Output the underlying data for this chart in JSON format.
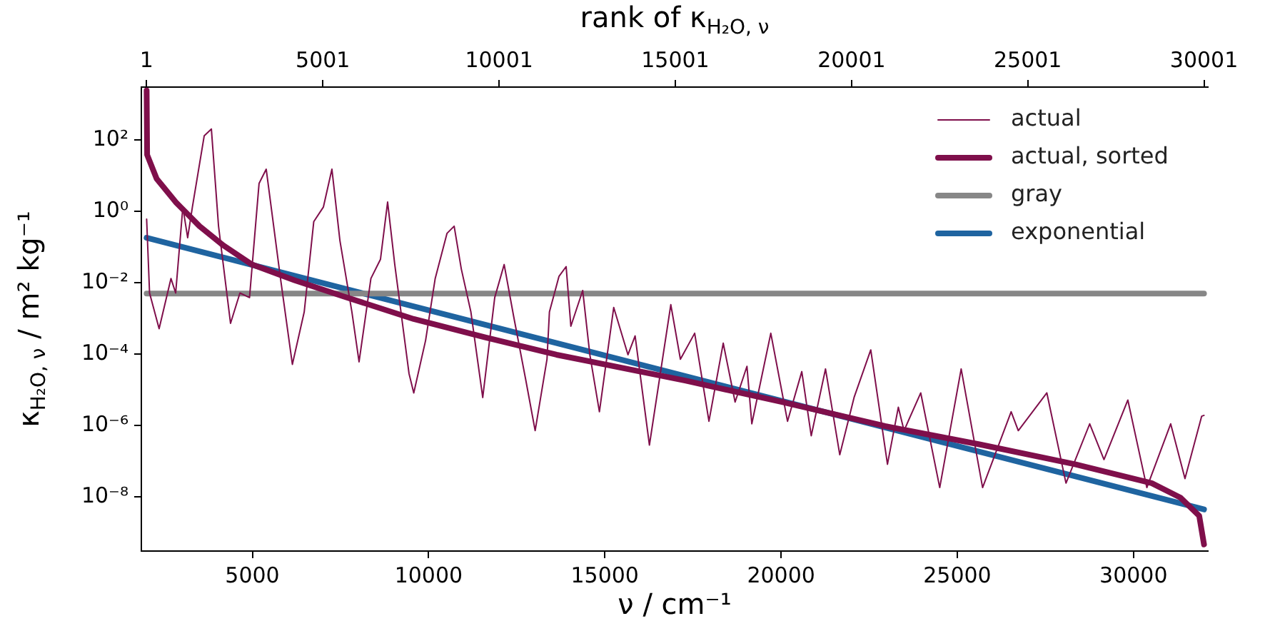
{
  "chart_data": {
    "type": "line",
    "xlabel": "ν / cm⁻¹",
    "ylabel": "κ$_{H₂O, ν}$ / m² kg⁻¹",
    "x2label": "rank of κ$_{H₂O, ν}$",
    "log": "y",
    "xlim": [
      1850,
      32110
    ],
    "xticks": [
      5000,
      10000,
      15000,
      20000,
      25000,
      30000
    ],
    "x2lim": [
      -149,
      30111
    ],
    "x2ticks": [
      1,
      5001,
      10001,
      15001,
      20001,
      25001,
      30001
    ],
    "ylim": [
      3e-10,
      3000
    ],
    "yticks": [
      {
        "value": 1e-08,
        "label": "10⁻⁸"
      },
      {
        "value": 1e-06,
        "label": "10⁻⁶"
      },
      {
        "value": 0.0001,
        "label": "10⁻⁴"
      },
      {
        "value": 0.01,
        "label": "10⁻²"
      },
      {
        "value": 1,
        "label": "10⁰"
      },
      {
        "value": 100,
        "label": "10²"
      }
    ],
    "grid": false,
    "legend": "top right",
    "marker": "none",
    "line_style": "solid",
    "series": [
      {
        "name": "actual",
        "color": "#7f0f4b",
        "x": [
          2000,
          2083,
          2354,
          2690,
          2824,
          3027,
          3164,
          3298,
          3634,
          3837,
          4040,
          4380,
          4647,
          4919,
          5190,
          5393,
          5798,
          6135,
          6471,
          6742,
          7014,
          7257,
          7484,
          7824,
          8027,
          8363,
          8635,
          8837,
          9040,
          9445,
          9579,
          9915,
          10187,
          10523,
          10725,
          10928,
          11200,
          11536,
          11876,
          12144,
          12415,
          12751,
          13023,
          13359,
          13428,
          13700,
          13902,
          14036,
          14372,
          14575,
          14846,
          15252,
          15657,
          15859,
          16265,
          16872,
          17144,
          17549,
          17954,
          18359,
          18696,
          19032,
          19170,
          19709,
          20183,
          20588,
          20856,
          21261,
          21666,
          22071,
          22545,
          23019,
          23327,
          23489,
          23963,
          24502,
          25110,
          25718,
          26528,
          26731,
          27541,
          28084,
          28757,
          29162,
          29839,
          30378,
          31054,
          31460,
          31934,
          32000
        ],
        "values": [
          0.6,
          0.0051,
          0.00051,
          0.013,
          0.0051,
          1.3,
          0.18,
          1.3,
          130,
          200,
          0.38,
          0.00072,
          0.0051,
          0.0038,
          6,
          15,
          0.013,
          5.1e-05,
          0.0015,
          0.51,
          1.3,
          15,
          0.15,
          0.0015,
          6e-05,
          0.013,
          0.045,
          1.8,
          0.032,
          2.8e-05,
          8.1e-06,
          0.00024,
          0.013,
          0.24,
          0.38,
          0.024,
          0.0015,
          6e-06,
          0.0038,
          0.032,
          0.0011,
          2e-05,
          7.1e-07,
          7.1e-05,
          0.0015,
          0.015,
          0.028,
          0.0006,
          0.006,
          9.5e-05,
          2.4e-06,
          0.002,
          9.5e-05,
          0.00032,
          2.8e-07,
          0.0024,
          7.1e-05,
          0.00038,
          1.3e-06,
          0.0002,
          4.5e-06,
          4.5e-05,
          1.1e-06,
          0.00038,
          1.3e-06,
          3.2e-05,
          5.1e-07,
          3.8e-05,
          1.5e-07,
          6e-06,
          0.00013,
          8.1e-08,
          3.2e-06,
          7.1e-07,
          8.1e-06,
          1.8e-08,
          3.8e-05,
          1.8e-08,
          2.4e-06,
          7.1e-07,
          8.1e-06,
          2.4e-08,
          1.1e-06,
          1.1e-07,
          5.1e-06,
          1.8e-08,
          1.1e-06,
          3.2e-08,
          1.8e-06,
          1.9e-06
        ]
      },
      {
        "name": "actual, sorted",
        "color": "#7f0f4b",
        "x": [
          2000,
          2014,
          2285,
          2824,
          3501,
          4177,
          4988,
          6203,
          7553,
          9579,
          11605,
          13630,
          17277,
          19980,
          22950,
          25650,
          28340,
          30515,
          31325,
          31864,
          32000
        ],
        "values": [
          2400,
          38,
          8.1,
          1.8,
          0.38,
          0.11,
          0.032,
          0.0115,
          0.0042,
          0.00095,
          0.00029,
          9.5e-05,
          1.8e-05,
          4.6e-06,
          9.5e-07,
          2.9e-07,
          8.1e-08,
          2.4e-08,
          9.5e-09,
          2.9e-09,
          4.6e-10
        ]
      },
      {
        "name": "gray",
        "color": "#878787",
        "x": [
          2000,
          32000
        ],
        "values": [
          0.0049,
          0.0049
        ]
      },
      {
        "name": "exponential",
        "color": "#1f64a0",
        "x": [
          2000,
          32000
        ],
        "values": [
          0.18,
          4.4e-09
        ]
      }
    ]
  }
}
